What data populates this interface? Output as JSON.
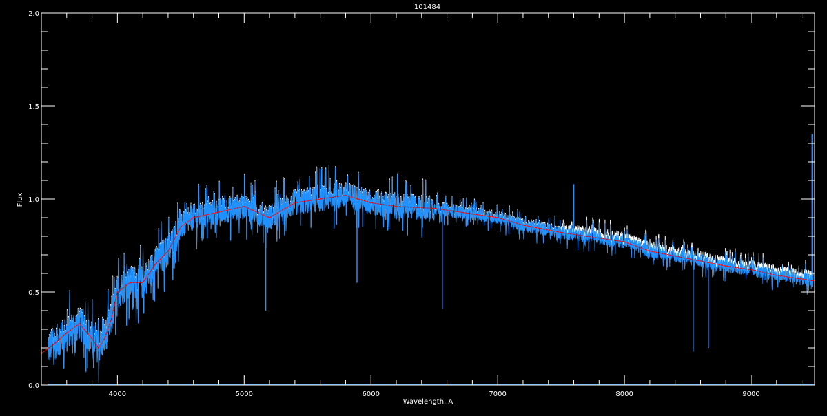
{
  "chart_data": {
    "type": "line",
    "title": "101484",
    "xlabel": "Wavelength, A",
    "ylabel": "Flux",
    "xlim": [
      3400,
      9500
    ],
    "ylim": [
      0.0,
      2.0
    ],
    "x_ticks": [
      "4000",
      "5000",
      "6000",
      "7000",
      "8000",
      "9000"
    ],
    "y_ticks": [
      "0.0",
      "0.5",
      "1.0",
      "1.5",
      "2.0"
    ],
    "grid": false,
    "colors": {
      "background": "#000000",
      "axes": "#ffffff",
      "observed": "#1e90ff",
      "underlying": "#ffffff",
      "smoothed": "#ff0000"
    },
    "series": [
      {
        "role": "smoothed continuum (red dashed)",
        "x": [
          3400,
          3500,
          3600,
          3700,
          3800,
          3850,
          3900,
          3950,
          4000,
          4100,
          4200,
          4300,
          4400,
          4500,
          4600,
          4800,
          5000,
          5200,
          5400,
          5600,
          5800,
          6000,
          6200,
          6500,
          6800,
          7000,
          7200,
          7500,
          7700,
          8000,
          8200,
          8500,
          8800,
          9000,
          9200,
          9500
        ],
        "y": [
          0.17,
          0.22,
          0.28,
          0.33,
          0.25,
          0.2,
          0.25,
          0.35,
          0.5,
          0.55,
          0.55,
          0.65,
          0.72,
          0.85,
          0.9,
          0.93,
          0.96,
          0.9,
          0.98,
          1.0,
          1.02,
          0.98,
          0.96,
          0.95,
          0.92,
          0.9,
          0.86,
          0.82,
          0.8,
          0.77,
          0.72,
          0.68,
          0.64,
          0.62,
          0.59,
          0.56
        ]
      }
    ],
    "features": [
      {
        "x": 5170,
        "y": 0.4
      },
      {
        "x": 5890,
        "y": 0.55
      },
      {
        "x": 6563,
        "y": 0.41
      },
      {
        "x": 7600,
        "y": 1.08
      },
      {
        "x": 8542,
        "y": 0.18
      },
      {
        "x": 8662,
        "y": 0.2
      },
      {
        "x": 9480,
        "y": 1.35
      }
    ]
  }
}
